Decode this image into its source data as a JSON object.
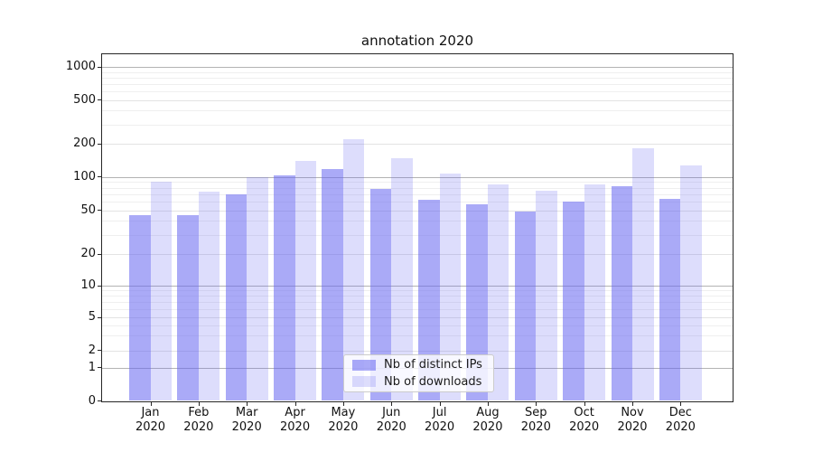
{
  "title": "annotation 2020",
  "chart_data": {
    "type": "bar",
    "title": "annotation 2020",
    "categories": [
      "Jan 2020",
      "Feb 2020",
      "Mar 2020",
      "Apr 2020",
      "May 2020",
      "Jun 2020",
      "Jul 2020",
      "Aug 2020",
      "Sep 2020",
      "Oct 2020",
      "Nov 2020",
      "Dec 2020"
    ],
    "series": [
      {
        "name": "Nb of distinct IPs",
        "base_color": "#6464f0",
        "alpha": 0.55,
        "rendered_color": "#aaaaf7",
        "values": [
          45,
          45,
          70,
          103,
          119,
          78,
          62,
          56,
          49,
          60,
          82,
          63
        ]
      },
      {
        "name": "Nb of downloads",
        "base_color": "#6464f0",
        "alpha": 0.22,
        "rendered_color": "#dcdcfa",
        "values": [
          91,
          73,
          100,
          141,
          220,
          148,
          107,
          86,
          75,
          86,
          181,
          127
        ]
      }
    ],
    "yscale": "log",
    "yticks": [
      0,
      1,
      2,
      5,
      10,
      20,
      50,
      100,
      200,
      500,
      1000
    ],
    "ylim": [
      0,
      1000
    ],
    "grid": true,
    "legend_position": "lower-center-inside",
    "grid_major_color": "#b3b3b3",
    "grid_minor_color": "#efefef",
    "grid_labeled_minor_color": "#e3e3e3",
    "background": "#ffffff"
  }
}
